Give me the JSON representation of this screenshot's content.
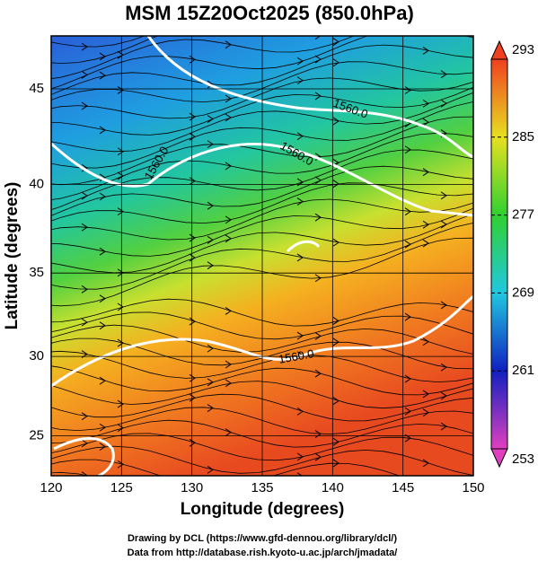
{
  "chart_data": {
    "type": "map",
    "title": "MSM 15Z20Oct2025 (850.0hPa)",
    "x_label": "Longitude (degrees)",
    "y_label": "Latitude  (degrees)",
    "projection": "mercator",
    "xlim": [
      120,
      150
    ],
    "xticks": [
      120,
      125,
      130,
      135,
      140,
      145,
      150
    ],
    "ylim": [
      22.4,
      47.6
    ],
    "yticks": [
      25,
      30,
      35,
      40,
      45
    ],
    "grid": true,
    "colorbar": {
      "range": [
        253,
        293
      ],
      "ticks": [
        253,
        261,
        269,
        277,
        285,
        293
      ]
    },
    "contour_labels": [
      "1560.0",
      "1560.0",
      "1560.0",
      "1560.0"
    ],
    "credits": [
      "Drawing by DCL (https://www.gfd-dennou.org/library/dcl/)",
      "Data from http://database.rish.kyoto-u.ac.jp/arch/jmadata/"
    ]
  }
}
